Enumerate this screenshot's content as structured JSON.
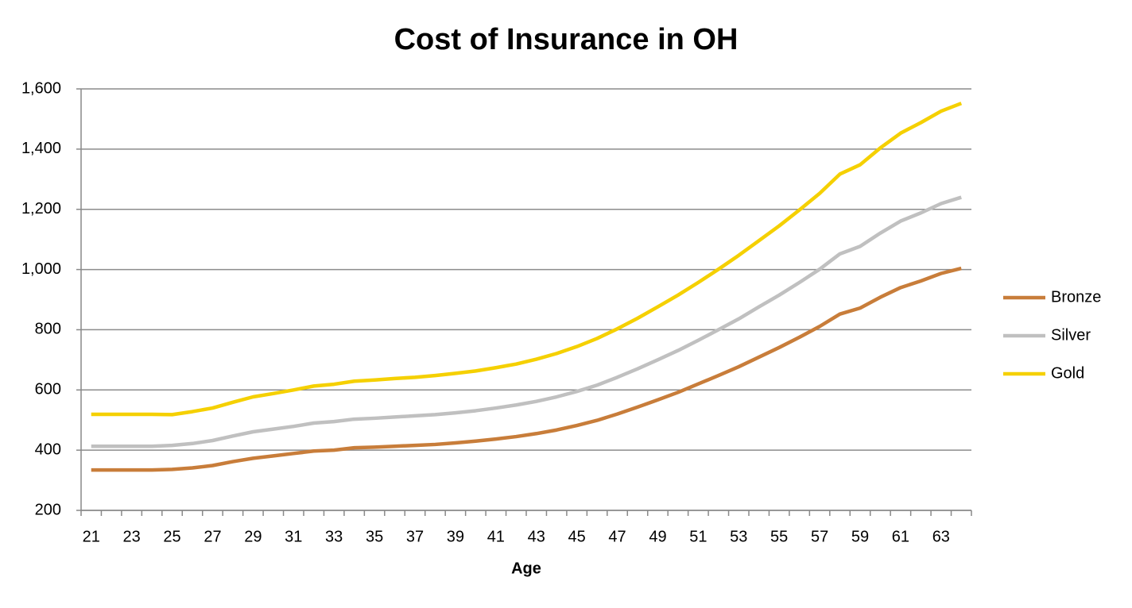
{
  "chart_data": {
    "type": "line",
    "title": "Cost of Insurance in OH",
    "x_label": "Age",
    "categories": [
      "21",
      null,
      "23",
      null,
      "25",
      null,
      "27",
      null,
      "29",
      null,
      "31",
      null,
      "33",
      null,
      "35",
      null,
      "37",
      null,
      "39",
      null,
      "41",
      null,
      "43",
      null,
      "45",
      null,
      "47",
      null,
      "49",
      null,
      "51",
      null,
      "53",
      null,
      "55",
      null,
      "57",
      null,
      "59",
      null,
      "61",
      null,
      "63",
      null
    ],
    "series": [
      {
        "name": "Bronze",
        "color": "#c87d3a",
        "values": [
          334,
          334,
          334,
          334,
          336,
          341,
          349,
          362,
          373,
          381,
          389,
          397,
          400,
          408,
          410,
          413,
          416,
          419,
          424,
          430,
          437,
          445,
          455,
          467,
          482,
          499,
          520,
          543,
          567,
          592,
          620,
          648,
          677,
          709,
          741,
          775,
          811,
          852,
          872,
          908,
          940,
          962,
          987,
          1004
        ]
      },
      {
        "name": "Silver",
        "color": "#c0c0c0",
        "values": [
          413,
          413,
          413,
          413,
          416,
          422,
          432,
          447,
          461,
          470,
          479,
          490,
          495,
          503,
          506,
          510,
          514,
          518,
          524,
          531,
          540,
          550,
          562,
          577,
          595,
          616,
          642,
          670,
          700,
          731,
          765,
          800,
          836,
          876,
          915,
          957,
          1001,
          1052,
          1077,
          1121,
          1161,
          1188,
          1219,
          1240
        ]
      },
      {
        "name": "Gold",
        "color": "#f5d000",
        "values": [
          519,
          519,
          519,
          519,
          518,
          528,
          540,
          559,
          577,
          588,
          600,
          613,
          619,
          629,
          633,
          638,
          642,
          648,
          655,
          663,
          674,
          686,
          702,
          721,
          744,
          771,
          803,
          838,
          876,
          915,
          957,
          1001,
          1047,
          1096,
          1145,
          1198,
          1253,
          1317,
          1348,
          1404,
          1453,
          1488,
          1526,
          1552
        ]
      }
    ],
    "ylim": [
      200,
      1600
    ],
    "yticks": [
      200,
      400,
      600,
      800,
      {
        "value": 1000,
        "label": "1,000"
      },
      {
        "value": 1200,
        "label": "1,200"
      },
      {
        "value": 1400,
        "label": "1,400"
      },
      {
        "value": 1600,
        "label": "1,600"
      }
    ],
    "grid": true,
    "legend": "right"
  }
}
